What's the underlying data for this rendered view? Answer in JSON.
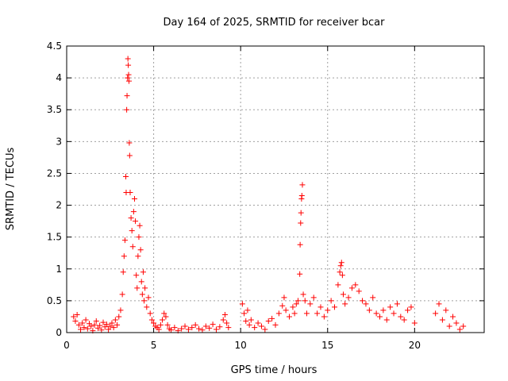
{
  "chart_data": {
    "type": "scatter",
    "title": "Day 164 of 2025, SRMTID for receiver bcar",
    "xlabel": "GPS time / hours",
    "ylabel": "SRMTID / TECUs",
    "xlim": [
      0,
      24
    ],
    "ylim": [
      0,
      4.5
    ],
    "xticks": [
      0,
      5,
      10,
      15,
      20
    ],
    "yticks": [
      0,
      0.5,
      1,
      1.5,
      2,
      2.5,
      3,
      3.5,
      4,
      4.5
    ],
    "xtick_labels": [
      "0",
      "5",
      "10",
      "15",
      "20"
    ],
    "ytick_labels": [
      "0",
      "0.5",
      "1",
      "1.5",
      "2",
      "2.5",
      "3",
      "3.5",
      "4",
      "4.5"
    ],
    "grid": true,
    "marker": "+",
    "series": [
      {
        "name": "SRMTID",
        "color": "#ff0000",
        "points": [
          [
            0.4,
            0.25
          ],
          [
            0.5,
            0.18
          ],
          [
            0.6,
            0.28
          ],
          [
            0.7,
            0.12
          ],
          [
            0.8,
            0.05
          ],
          [
            0.9,
            0.15
          ],
          [
            1.0,
            0.08
          ],
          [
            1.1,
            0.2
          ],
          [
            1.2,
            0.06
          ],
          [
            1.3,
            0.14
          ],
          [
            1.4,
            0.1
          ],
          [
            1.5,
            0.03
          ],
          [
            1.6,
            0.12
          ],
          [
            1.7,
            0.18
          ],
          [
            1.8,
            0.07
          ],
          [
            1.9,
            0.11
          ],
          [
            2.0,
            0.04
          ],
          [
            2.1,
            0.16
          ],
          [
            2.2,
            0.09
          ],
          [
            2.3,
            0.13
          ],
          [
            2.4,
            0.05
          ],
          [
            2.5,
            0.1
          ],
          [
            2.6,
            0.15
          ],
          [
            2.7,
            0.08
          ],
          [
            2.8,
            0.2
          ],
          [
            2.9,
            0.12
          ],
          [
            3.0,
            0.25
          ],
          [
            3.1,
            0.35
          ],
          [
            3.2,
            0.6
          ],
          [
            3.25,
            0.95
          ],
          [
            3.3,
            1.2
          ],
          [
            3.35,
            1.45
          ],
          [
            3.4,
            2.45
          ],
          [
            3.42,
            2.2
          ],
          [
            3.45,
            3.5
          ],
          [
            3.47,
            3.72
          ],
          [
            3.5,
            4.0
          ],
          [
            3.52,
            4.3
          ],
          [
            3.54,
            4.2
          ],
          [
            3.56,
            4.05
          ],
          [
            3.58,
            3.95
          ],
          [
            3.6,
            2.98
          ],
          [
            3.62,
            2.78
          ],
          [
            3.65,
            2.2
          ],
          [
            3.7,
            1.8
          ],
          [
            3.75,
            1.6
          ],
          [
            3.8,
            1.35
          ],
          [
            3.85,
            1.9
          ],
          [
            3.9,
            2.1
          ],
          [
            3.95,
            1.75
          ],
          [
            4.0,
            0.9
          ],
          [
            4.05,
            0.7
          ],
          [
            4.1,
            1.2
          ],
          [
            4.15,
            1.5
          ],
          [
            4.2,
            1.68
          ],
          [
            4.25,
            1.3
          ],
          [
            4.3,
            0.8
          ],
          [
            4.35,
            0.6
          ],
          [
            4.4,
            0.95
          ],
          [
            4.45,
            0.5
          ],
          [
            4.5,
            0.7
          ],
          [
            4.6,
            0.4
          ],
          [
            4.7,
            0.55
          ],
          [
            4.8,
            0.3
          ],
          [
            4.9,
            0.2
          ],
          [
            5.0,
            0.15
          ],
          [
            5.1,
            0.1
          ],
          [
            5.2,
            0.08
          ],
          [
            5.3,
            0.05
          ],
          [
            5.4,
            0.12
          ],
          [
            5.5,
            0.2
          ],
          [
            5.6,
            0.3
          ],
          [
            5.7,
            0.25
          ],
          [
            5.8,
            0.12
          ],
          [
            5.9,
            0.06
          ],
          [
            6.0,
            0.04
          ],
          [
            6.2,
            0.08
          ],
          [
            6.4,
            0.03
          ],
          [
            6.6,
            0.06
          ],
          [
            6.8,
            0.1
          ],
          [
            7.0,
            0.05
          ],
          [
            7.2,
            0.08
          ],
          [
            7.4,
            0.12
          ],
          [
            7.6,
            0.06
          ],
          [
            7.8,
            0.04
          ],
          [
            8.0,
            0.1
          ],
          [
            8.2,
            0.07
          ],
          [
            8.4,
            0.13
          ],
          [
            8.6,
            0.05
          ],
          [
            8.8,
            0.09
          ],
          [
            9.0,
            0.2
          ],
          [
            9.1,
            0.28
          ],
          [
            9.2,
            0.15
          ],
          [
            9.3,
            0.08
          ],
          [
            10.1,
            0.45
          ],
          [
            10.2,
            0.3
          ],
          [
            10.3,
            0.18
          ],
          [
            10.4,
            0.35
          ],
          [
            10.5,
            0.12
          ],
          [
            10.6,
            0.2
          ],
          [
            10.8,
            0.08
          ],
          [
            11.0,
            0.15
          ],
          [
            11.2,
            0.1
          ],
          [
            11.4,
            0.05
          ],
          [
            11.6,
            0.18
          ],
          [
            11.8,
            0.22
          ],
          [
            12.0,
            0.12
          ],
          [
            12.2,
            0.3
          ],
          [
            12.4,
            0.42
          ],
          [
            12.5,
            0.55
          ],
          [
            12.6,
            0.35
          ],
          [
            12.8,
            0.25
          ],
          [
            13.0,
            0.4
          ],
          [
            13.1,
            0.3
          ],
          [
            13.2,
            0.45
          ],
          [
            13.3,
            0.5
          ],
          [
            13.4,
            0.92
          ],
          [
            13.42,
            1.38
          ],
          [
            13.45,
            1.72
          ],
          [
            13.47,
            1.88
          ],
          [
            13.5,
            2.1
          ],
          [
            13.52,
            2.15
          ],
          [
            13.55,
            2.32
          ],
          [
            13.6,
            0.6
          ],
          [
            13.7,
            0.5
          ],
          [
            13.8,
            0.3
          ],
          [
            14.0,
            0.45
          ],
          [
            14.2,
            0.55
          ],
          [
            14.4,
            0.3
          ],
          [
            14.6,
            0.4
          ],
          [
            14.8,
            0.25
          ],
          [
            15.0,
            0.35
          ],
          [
            15.2,
            0.5
          ],
          [
            15.4,
            0.4
          ],
          [
            15.6,
            0.75
          ],
          [
            15.7,
            0.95
          ],
          [
            15.75,
            1.05
          ],
          [
            15.8,
            1.1
          ],
          [
            15.85,
            0.9
          ],
          [
            15.9,
            0.6
          ],
          [
            16.0,
            0.45
          ],
          [
            16.2,
            0.55
          ],
          [
            16.4,
            0.7
          ],
          [
            16.6,
            0.75
          ],
          [
            16.8,
            0.65
          ],
          [
            17.0,
            0.5
          ],
          [
            17.2,
            0.45
          ],
          [
            17.4,
            0.35
          ],
          [
            17.6,
            0.55
          ],
          [
            17.8,
            0.3
          ],
          [
            18.0,
            0.25
          ],
          [
            18.2,
            0.35
          ],
          [
            18.4,
            0.2
          ],
          [
            18.6,
            0.4
          ],
          [
            18.8,
            0.3
          ],
          [
            19.0,
            0.45
          ],
          [
            19.2,
            0.25
          ],
          [
            19.4,
            0.2
          ],
          [
            19.6,
            0.35
          ],
          [
            19.8,
            0.4
          ],
          [
            20.0,
            0.15
          ],
          [
            21.2,
            0.3
          ],
          [
            21.4,
            0.45
          ],
          [
            21.6,
            0.2
          ],
          [
            21.8,
            0.35
          ],
          [
            22.0,
            0.1
          ],
          [
            22.2,
            0.25
          ],
          [
            22.4,
            0.15
          ],
          [
            22.6,
            0.05
          ],
          [
            22.8,
            0.1
          ]
        ]
      }
    ]
  }
}
